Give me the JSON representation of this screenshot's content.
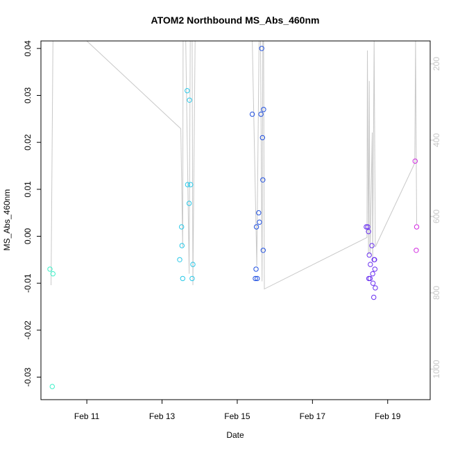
{
  "chart_data": {
    "type": "scatter",
    "title": "ATOM2 Northbound MS_Abs_460nm",
    "xlabel": "Date",
    "ylabel": "MS_Abs_460nm",
    "x_units": "days (Feb = 0 offset, day of month)",
    "xlim": [
      9.78,
      20.13
    ],
    "ylim": [
      -0.0348,
      0.0416
    ],
    "x_ticks": [
      {
        "value": 11,
        "label": "Feb 11"
      },
      {
        "value": 13,
        "label": "Feb 13"
      },
      {
        "value": 15,
        "label": "Feb 15"
      },
      {
        "value": 17,
        "label": "Feb 17"
      },
      {
        "value": 19,
        "label": "Feb 19"
      }
    ],
    "y_ticks": [
      {
        "value": 0.04,
        "label": "0.04"
      },
      {
        "value": 0.03,
        "label": "0.03"
      },
      {
        "value": 0.02,
        "label": "0.02"
      },
      {
        "value": 0.01,
        "label": "0.01"
      },
      {
        "value": 0.0,
        "label": "0.00"
      },
      {
        "value": -0.01,
        "label": "-0.01"
      },
      {
        "value": -0.02,
        "label": "-0.02"
      },
      {
        "value": -0.03,
        "label": "-0.03"
      }
    ],
    "secondary_axis": {
      "side": "right",
      "color": "#c8c8c8",
      "ylim": [
        1080,
        140
      ],
      "ticks": [
        {
          "value": 200,
          "label": "200"
        },
        {
          "value": 400,
          "label": "400"
        },
        {
          "value": 600,
          "label": "600"
        },
        {
          "value": 800,
          "label": "800"
        },
        {
          "value": 1000,
          "label": "1000"
        }
      ]
    },
    "series": [
      {
        "name": "points",
        "marker": "open-circle",
        "points": [
          {
            "x": 10.02,
            "y": -0.007,
            "color": "#3cf0c8"
          },
          {
            "x": 10.08,
            "y": -0.032,
            "color": "#3cf0c8"
          },
          {
            "x": 10.1,
            "y": -0.008,
            "color": "#3cf0c8"
          },
          {
            "x": 13.47,
            "y": -0.005,
            "color": "#28c8e8"
          },
          {
            "x": 13.52,
            "y": 0.002,
            "color": "#28c8e8"
          },
          {
            "x": 13.53,
            "y": -0.002,
            "color": "#28c8e8"
          },
          {
            "x": 13.55,
            "y": -0.009,
            "color": "#28c8e8"
          },
          {
            "x": 13.67,
            "y": 0.031,
            "color": "#28c8e8"
          },
          {
            "x": 13.68,
            "y": 0.011,
            "color": "#28c8e8"
          },
          {
            "x": 13.72,
            "y": 0.007,
            "color": "#28c8e8"
          },
          {
            "x": 13.73,
            "y": 0.029,
            "color": "#28c8e8"
          },
          {
            "x": 13.76,
            "y": 0.011,
            "color": "#28c8e8"
          },
          {
            "x": 13.8,
            "y": -0.009,
            "color": "#28c8e8"
          },
          {
            "x": 13.82,
            "y": -0.006,
            "color": "#28c8e8"
          },
          {
            "x": 15.4,
            "y": 0.026,
            "color": "#2050e0"
          },
          {
            "x": 15.48,
            "y": -0.009,
            "color": "#2050e0"
          },
          {
            "x": 15.5,
            "y": -0.007,
            "color": "#2050e0"
          },
          {
            "x": 15.51,
            "y": 0.002,
            "color": "#2050e0"
          },
          {
            "x": 15.53,
            "y": -0.009,
            "color": "#2050e0"
          },
          {
            "x": 15.57,
            "y": 0.005,
            "color": "#2050e0"
          },
          {
            "x": 15.59,
            "y": 0.003,
            "color": "#2050e0"
          },
          {
            "x": 15.63,
            "y": 0.026,
            "color": "#2050e0"
          },
          {
            "x": 15.65,
            "y": 0.04,
            "color": "#2050e0"
          },
          {
            "x": 15.67,
            "y": 0.021,
            "color": "#2050e0"
          },
          {
            "x": 15.68,
            "y": 0.012,
            "color": "#2050e0"
          },
          {
            "x": 15.69,
            "y": -0.003,
            "color": "#2050e0"
          },
          {
            "x": 15.7,
            "y": 0.027,
            "color": "#2050e0"
          },
          {
            "x": 18.43,
            "y": 0.002,
            "color": "#6a30f0"
          },
          {
            "x": 18.47,
            "y": 0.002,
            "color": "#6a30f0"
          },
          {
            "x": 18.49,
            "y": 0.001,
            "color": "#6a30f0"
          },
          {
            "x": 18.5,
            "y": -0.009,
            "color": "#6a30f0"
          },
          {
            "x": 18.51,
            "y": -0.004,
            "color": "#6a30f0"
          },
          {
            "x": 18.53,
            "y": -0.009,
            "color": "#6a30f0"
          },
          {
            "x": 18.54,
            "y": -0.006,
            "color": "#6a30f0"
          },
          {
            "x": 18.58,
            "y": -0.002,
            "color": "#6a30f0"
          },
          {
            "x": 18.6,
            "y": -0.008,
            "color": "#6a30f0"
          },
          {
            "x": 18.61,
            "y": -0.01,
            "color": "#6a30f0"
          },
          {
            "x": 18.63,
            "y": -0.013,
            "color": "#6a30f0"
          },
          {
            "x": 18.64,
            "y": -0.005,
            "color": "#6a30f0"
          },
          {
            "x": 18.65,
            "y": -0.005,
            "color": "#6a30f0"
          },
          {
            "x": 18.66,
            "y": -0.007,
            "color": "#6a30f0"
          },
          {
            "x": 18.67,
            "y": -0.011,
            "color": "#6a30f0"
          },
          {
            "x": 19.73,
            "y": 0.016,
            "color": "#d028e0"
          },
          {
            "x": 19.76,
            "y": -0.003,
            "color": "#d028e0"
          },
          {
            "x": 19.77,
            "y": 0.002,
            "color": "#d028e0"
          }
        ]
      },
      {
        "name": "secondary-line",
        "axis": "right",
        "color": "#c8c8c8",
        "points": [
          {
            "x": 10.05,
            "y": 780
          },
          {
            "x": 10.1,
            "y": 140
          },
          {
            "x": 11.0,
            "y": 140
          },
          {
            "x": 13.5,
            "y": 370
          },
          {
            "x": 13.55,
            "y": 680
          },
          {
            "x": 13.56,
            "y": 140
          },
          {
            "x": 13.63,
            "y": 140
          },
          {
            "x": 13.72,
            "y": 750
          },
          {
            "x": 13.75,
            "y": 140
          },
          {
            "x": 13.8,
            "y": 140
          },
          {
            "x": 13.82,
            "y": 780
          },
          {
            "x": 13.88,
            "y": 140
          },
          {
            "x": 15.4,
            "y": 140
          },
          {
            "x": 15.52,
            "y": 730
          },
          {
            "x": 15.58,
            "y": 140
          },
          {
            "x": 15.62,
            "y": 140
          },
          {
            "x": 15.66,
            "y": 770
          },
          {
            "x": 15.68,
            "y": 140
          },
          {
            "x": 15.7,
            "y": 140
          },
          {
            "x": 15.72,
            "y": 790
          },
          {
            "x": 18.45,
            "y": 655
          },
          {
            "x": 18.46,
            "y": 165
          },
          {
            "x": 18.49,
            "y": 700
          },
          {
            "x": 18.51,
            "y": 245
          },
          {
            "x": 18.53,
            "y": 700
          },
          {
            "x": 18.59,
            "y": 380
          },
          {
            "x": 18.6,
            "y": 720
          },
          {
            "x": 18.64,
            "y": 140
          },
          {
            "x": 18.67,
            "y": 680
          },
          {
            "x": 19.72,
            "y": 460
          },
          {
            "x": 19.74,
            "y": 140
          },
          {
            "x": 19.77,
            "y": 620
          }
        ]
      }
    ]
  }
}
